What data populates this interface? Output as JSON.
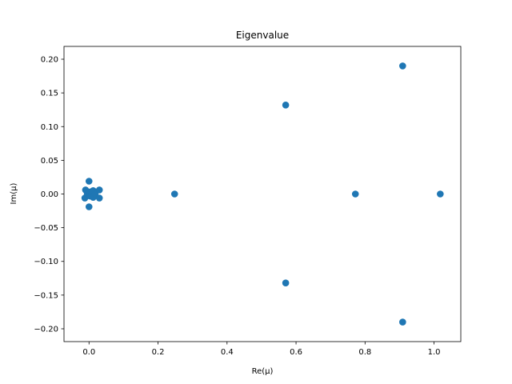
{
  "chart_data": {
    "type": "scatter",
    "title": "Eigenvalue",
    "xlabel": "Re(μ)",
    "ylabel": "Im(μ)",
    "xlim": [
      -0.0725,
      1.0775
    ],
    "ylim": [
      -0.219,
      0.219
    ],
    "xticks": [
      0.0,
      0.2,
      0.4,
      0.6,
      0.8,
      1.0
    ],
    "xtick_labels": [
      "0.0",
      "0.2",
      "0.4",
      "0.6",
      "0.8",
      "1.0"
    ],
    "yticks": [
      0.2,
      0.15,
      0.1,
      0.05,
      0.0,
      -0.05,
      -0.1,
      -0.15,
      -0.2
    ],
    "ytick_labels": [
      "0.20",
      "0.15",
      "0.10",
      "0.05",
      "0.00",
      "−0.05",
      "−0.10",
      "−0.15",
      "−0.20"
    ],
    "grid": false,
    "marker_color": "#1f77b4",
    "points": [
      {
        "x": -0.01,
        "y": 0.006
      },
      {
        "x": -0.012,
        "y": -0.006
      },
      {
        "x": -0.005,
        "y": 0.0
      },
      {
        "x": 0.0,
        "y": 0.019
      },
      {
        "x": 0.0,
        "y": -0.019
      },
      {
        "x": 0.002,
        "y": 0.003
      },
      {
        "x": 0.003,
        "y": -0.003
      },
      {
        "x": 0.008,
        "y": 0.0
      },
      {
        "x": 0.012,
        "y": 0.005
      },
      {
        "x": 0.012,
        "y": -0.005
      },
      {
        "x": 0.018,
        "y": 0.0
      },
      {
        "x": 0.03,
        "y": 0.006
      },
      {
        "x": 0.03,
        "y": -0.006
      },
      {
        "x": 0.248,
        "y": 0.0
      },
      {
        "x": 0.57,
        "y": 0.132
      },
      {
        "x": 0.57,
        "y": -0.132
      },
      {
        "x": 0.772,
        "y": 0.0
      },
      {
        "x": 0.909,
        "y": 0.19
      },
      {
        "x": 0.909,
        "y": -0.19
      },
      {
        "x": 1.018,
        "y": 0.0
      }
    ]
  }
}
